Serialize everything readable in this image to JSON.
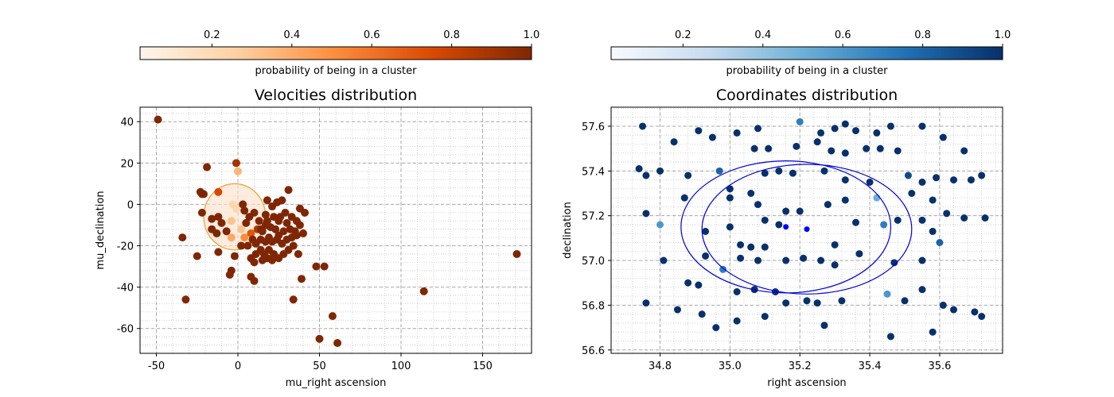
{
  "chart_data": [
    {
      "type": "scatter",
      "title": "Velocities distribution",
      "xlabel": "mu_right ascension",
      "ylabel": "mu_declination",
      "xlim": [
        -60,
        180
      ],
      "ylim": [
        -72,
        47
      ],
      "xticks": [
        -50,
        0,
        50,
        100,
        150
      ],
      "yticks": [
        -60,
        -40,
        -20,
        0,
        20,
        40
      ],
      "grid": true,
      "colormap": "Oranges",
      "colorbar": {
        "label": "probability of being in a cluster",
        "ticks": [
          "0.2",
          "0.4",
          "0.6",
          "0.8",
          "1.0"
        ],
        "placement": "top",
        "colors": [
          "#fff5eb",
          "#fdd0a2",
          "#fd8d3c",
          "#d94801",
          "#7f2704"
        ]
      },
      "ellipse": {
        "cx": -2,
        "cy": -6,
        "rx": 19,
        "ry": 16,
        "stroke": "#f0a030",
        "fill": "#fde0c8"
      },
      "points": [
        [
          -49,
          41,
          1
        ],
        [
          -1,
          20,
          0.9
        ],
        [
          -19,
          18,
          1
        ],
        [
          0,
          16,
          0.35
        ],
        [
          -12,
          6,
          0.75
        ],
        [
          -23,
          6,
          1
        ],
        [
          -22,
          5,
          1
        ],
        [
          -21,
          5,
          1
        ],
        [
          -22,
          -4,
          1
        ],
        [
          -12,
          -6,
          1
        ],
        [
          -3,
          0,
          0.2
        ],
        [
          -1,
          -2,
          0.2
        ],
        [
          -4,
          -8,
          0.3
        ],
        [
          2,
          -12,
          0.3
        ],
        [
          -16,
          -7,
          1
        ],
        [
          -16,
          -12,
          1
        ],
        [
          -13,
          -14,
          1
        ],
        [
          -10,
          -9,
          1
        ],
        [
          -7,
          -13,
          1
        ],
        [
          -4,
          -16,
          0.4
        ],
        [
          4,
          -16,
          0.5
        ],
        [
          8,
          -14,
          0.7
        ],
        [
          12,
          -12,
          0.85
        ],
        [
          15,
          -13,
          1
        ],
        [
          17,
          -10,
          1
        ],
        [
          20,
          -11,
          1
        ],
        [
          23,
          -12,
          1
        ],
        [
          25,
          -15,
          1
        ],
        [
          28,
          -13,
          1
        ],
        [
          32,
          -12,
          1
        ],
        [
          35,
          -13,
          1
        ],
        [
          38,
          -10,
          1
        ],
        [
          21,
          -1,
          1
        ],
        [
          24,
          1,
          1
        ],
        [
          18,
          2,
          1
        ],
        [
          27,
          2,
          1
        ],
        [
          31,
          7,
          1
        ],
        [
          29,
          -4,
          1
        ],
        [
          26,
          -6,
          1
        ],
        [
          22,
          -6,
          1
        ],
        [
          17,
          -5,
          1
        ],
        [
          13,
          -8,
          1
        ],
        [
          10,
          -4,
          1
        ],
        [
          7,
          -6,
          1
        ],
        [
          5,
          -9,
          1
        ],
        [
          4,
          -3,
          1
        ],
        [
          3,
          0,
          1
        ],
        [
          9,
          -17,
          1
        ],
        [
          11,
          -19,
          1
        ],
        [
          14,
          -17,
          1
        ],
        [
          17,
          -18,
          1
        ],
        [
          19,
          -16,
          1
        ],
        [
          21,
          -18,
          1
        ],
        [
          24,
          -17,
          1
        ],
        [
          27,
          -19,
          1
        ],
        [
          30,
          -17,
          1
        ],
        [
          33,
          -16,
          1
        ],
        [
          36,
          -15,
          1
        ],
        [
          34,
          -20,
          1
        ],
        [
          31,
          -22,
          1
        ],
        [
          28,
          -24,
          1
        ],
        [
          25,
          -26,
          1
        ],
        [
          22,
          -24,
          1
        ],
        [
          19,
          -22,
          1
        ],
        [
          16,
          -24,
          1
        ],
        [
          14,
          -22,
          1
        ],
        [
          11,
          -24,
          1
        ],
        [
          8,
          -26,
          1
        ],
        [
          10,
          -28,
          1
        ],
        [
          18,
          -26,
          1
        ],
        [
          15,
          -27,
          1
        ],
        [
          21,
          -27,
          1
        ],
        [
          -2,
          -25,
          1
        ],
        [
          -12,
          -23,
          1
        ],
        [
          -25,
          -25,
          1
        ],
        [
          -34,
          -16,
          1
        ],
        [
          -4,
          -32,
          1
        ],
        [
          -5,
          -34,
          1
        ],
        [
          8,
          -35,
          1
        ],
        [
          10,
          -37,
          1
        ],
        [
          38,
          -2,
          1
        ],
        [
          41,
          -4,
          1
        ],
        [
          36,
          -8,
          1
        ],
        [
          40,
          -14,
          1
        ],
        [
          37,
          -24,
          1
        ],
        [
          48,
          -30,
          1
        ],
        [
          53,
          -30,
          1
        ],
        [
          39,
          -36,
          1
        ],
        [
          34,
          -46,
          1
        ],
        [
          -32,
          -46,
          1
        ],
        [
          58,
          -54,
          1
        ],
        [
          50,
          -65,
          1
        ],
        [
          61,
          -67,
          1
        ],
        [
          114,
          -42,
          1
        ],
        [
          171,
          -24,
          1
        ],
        [
          25,
          -8,
          1
        ],
        [
          30,
          -9,
          1
        ],
        [
          33,
          -6,
          1
        ],
        [
          14,
          -12,
          1
        ],
        [
          6,
          -20,
          1
        ],
        [
          2,
          -20,
          1
        ],
        [
          18,
          -8,
          1
        ]
      ]
    },
    {
      "type": "scatter",
      "title": "Coordinates distribution",
      "xlabel": "right ascension",
      "ylabel": "declination",
      "xlim": [
        34.66,
        35.78
      ],
      "ylim": [
        56.585,
        57.685
      ],
      "xticks": [
        "34.8",
        "35.0",
        "35.2",
        "35.4",
        "35.6"
      ],
      "yticks": [
        "56.6",
        "56.8",
        "57.0",
        "57.2",
        "57.4",
        "57.6"
      ],
      "grid": true,
      "colormap": "Blues",
      "colorbar": {
        "label": "probability of being in a cluster",
        "ticks": [
          "0.2",
          "0.4",
          "0.6",
          "0.8",
          "1.0"
        ],
        "placement": "top",
        "colors": [
          "#f7fbff",
          "#c6dbef",
          "#6baed6",
          "#2171b5",
          "#08306b"
        ]
      },
      "circles": [
        {
          "cx": 35.16,
          "cy": 57.15,
          "rx": 0.3,
          "ry": 0.295
        },
        {
          "cx": 35.22,
          "cy": 57.14,
          "rx": 0.3,
          "ry": 0.29
        }
      ],
      "centers": [
        [
          35.16,
          57.15
        ],
        [
          35.22,
          57.14
        ]
      ],
      "points": [
        [
          34.75,
          57.6,
          1
        ],
        [
          34.84,
          57.53,
          1
        ],
        [
          34.91,
          57.58,
          1
        ],
        [
          34.95,
          57.55,
          1
        ],
        [
          35.02,
          57.57,
          1
        ],
        [
          35.08,
          57.59,
          1
        ],
        [
          35.2,
          57.62,
          0.7
        ],
        [
          35.26,
          57.57,
          1
        ],
        [
          35.3,
          57.59,
          1
        ],
        [
          35.33,
          57.61,
          1
        ],
        [
          35.36,
          57.58,
          1
        ],
        [
          35.42,
          57.57,
          1
        ],
        [
          35.46,
          57.6,
          1
        ],
        [
          35.55,
          57.6,
          1
        ],
        [
          35.61,
          57.55,
          1
        ],
        [
          35.07,
          57.5,
          1
        ],
        [
          35.11,
          57.5,
          1
        ],
        [
          35.19,
          57.51,
          1
        ],
        [
          35.25,
          57.53,
          1
        ],
        [
          35.29,
          57.49,
          1
        ],
        [
          35.33,
          57.48,
          1
        ],
        [
          35.39,
          57.5,
          1
        ],
        [
          35.43,
          57.5,
          1
        ],
        [
          35.48,
          57.49,
          1
        ],
        [
          35.67,
          57.49,
          1
        ],
        [
          34.74,
          57.41,
          1
        ],
        [
          34.76,
          57.38,
          1
        ],
        [
          34.8,
          57.4,
          1
        ],
        [
          34.88,
          57.38,
          1
        ],
        [
          34.97,
          57.4,
          0.8
        ],
        [
          35.0,
          57.32,
          1
        ],
        [
          35.06,
          57.3,
          1
        ],
        [
          35.1,
          57.39,
          1
        ],
        [
          35.14,
          57.4,
          1
        ],
        [
          35.18,
          57.39,
          1
        ],
        [
          35.27,
          57.4,
          1
        ],
        [
          35.33,
          57.36,
          1
        ],
        [
          35.4,
          57.35,
          1
        ],
        [
          35.51,
          57.38,
          0.9
        ],
        [
          35.55,
          57.35,
          1
        ],
        [
          35.59,
          57.37,
          1
        ],
        [
          35.64,
          57.36,
          1
        ],
        [
          35.69,
          57.36,
          1
        ],
        [
          35.72,
          57.38,
          1
        ],
        [
          34.87,
          57.28,
          1
        ],
        [
          35.0,
          57.28,
          1
        ],
        [
          35.08,
          57.25,
          1
        ],
        [
          35.16,
          57.22,
          1
        ],
        [
          35.2,
          57.22,
          1
        ],
        [
          35.28,
          57.25,
          1
        ],
        [
          35.33,
          57.27,
          1
        ],
        [
          35.42,
          57.28,
          0.5
        ],
        [
          35.52,
          57.3,
          1
        ],
        [
          35.58,
          57.27,
          1
        ],
        [
          35.62,
          57.21,
          1
        ],
        [
          35.67,
          57.19,
          1
        ],
        [
          35.73,
          57.19,
          1
        ],
        [
          34.76,
          57.21,
          1
        ],
        [
          34.8,
          57.16,
          0.6
        ],
        [
          34.93,
          57.13,
          1
        ],
        [
          35.0,
          57.15,
          1
        ],
        [
          35.1,
          57.18,
          1
        ],
        [
          35.14,
          57.16,
          1
        ],
        [
          35.36,
          57.17,
          1
        ],
        [
          35.44,
          57.16,
          0.7
        ],
        [
          35.48,
          57.18,
          1
        ],
        [
          35.55,
          57.18,
          1
        ],
        [
          35.58,
          57.13,
          1
        ],
        [
          35.6,
          57.08,
          0.8
        ],
        [
          35.03,
          57.07,
          1
        ],
        [
          35.06,
          57.06,
          1
        ],
        [
          35.1,
          57.06,
          1
        ],
        [
          35.3,
          57.07,
          1
        ],
        [
          35.37,
          57.03,
          1
        ],
        [
          34.93,
          57.02,
          1
        ],
        [
          35.03,
          57.01,
          1
        ],
        [
          35.08,
          57.0,
          1
        ],
        [
          35.16,
          57.0,
          1
        ],
        [
          35.21,
          57.01,
          1
        ],
        [
          35.26,
          57.0,
          1
        ],
        [
          35.3,
          56.98,
          1
        ],
        [
          35.47,
          56.99,
          1
        ],
        [
          35.55,
          57.0,
          1
        ],
        [
          34.81,
          57.0,
          1
        ],
        [
          34.98,
          56.96,
          0.7
        ],
        [
          34.91,
          56.89,
          1
        ],
        [
          35.07,
          56.87,
          1
        ],
        [
          35.13,
          56.86,
          1
        ],
        [
          35.16,
          56.81,
          1
        ],
        [
          35.22,
          56.82,
          1
        ],
        [
          35.25,
          56.81,
          1
        ],
        [
          35.32,
          56.82,
          1
        ],
        [
          35.45,
          56.85,
          0.6
        ],
        [
          35.5,
          56.82,
          1
        ],
        [
          35.55,
          56.87,
          1
        ],
        [
          35.61,
          56.8,
          1
        ],
        [
          35.64,
          56.78,
          1
        ],
        [
          35.7,
          56.77,
          1
        ],
        [
          34.76,
          56.81,
          1
        ],
        [
          34.85,
          56.78,
          1
        ],
        [
          34.92,
          56.76,
          1
        ],
        [
          34.96,
          56.7,
          1
        ],
        [
          35.02,
          56.73,
          1
        ],
        [
          35.1,
          56.75,
          1
        ],
        [
          35.27,
          56.71,
          1
        ],
        [
          35.46,
          56.66,
          1
        ],
        [
          35.58,
          56.68,
          1
        ],
        [
          35.72,
          56.75,
          1
        ],
        [
          35.02,
          56.86,
          1
        ],
        [
          34.88,
          56.9,
          1
        ]
      ]
    }
  ]
}
